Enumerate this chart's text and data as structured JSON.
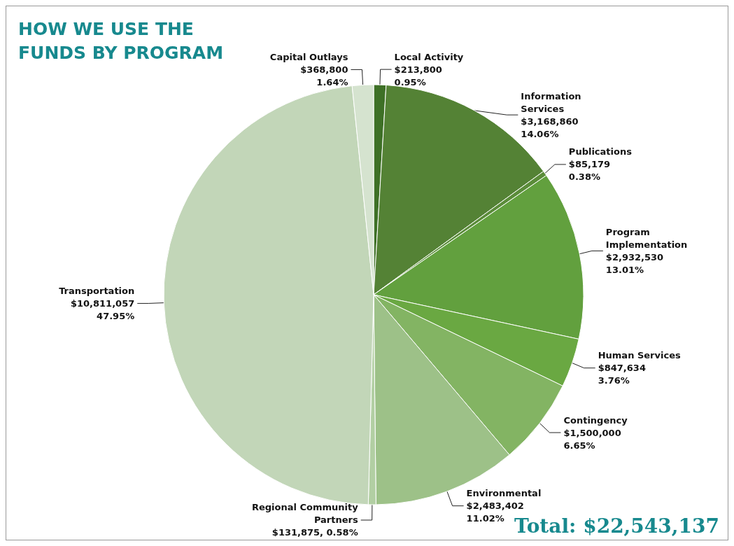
{
  "chart_data": {
    "type": "pie",
    "title": "HOW WE USE THE FUNDS BY PROGRAM",
    "categories": [
      "Local Activity",
      "Information Services",
      "Publications",
      "Program Implementation",
      "Human Services",
      "Contingency",
      "Environmental",
      "Regional Community Partners",
      "Transportation",
      "Capital Outlays"
    ],
    "values": [
      213800,
      3168860,
      85179,
      2932530,
      847634,
      1500000,
      2483402,
      131875,
      10811057,
      368800
    ],
    "value_labels": [
      "$213,800\n0.95%",
      "$3,168,860\n14.06%",
      "$85,179\n0.38%",
      "$2,932,530\n13.01%",
      "$847,634\n3.76%",
      "$1,500,000\n6.65%",
      "$2,483,402\n11.02%",
      "$131,875, 0.58%",
      "$10,811,057\n47.95%",
      "$368,800\n1.64%"
    ],
    "colors": [
      "#3e7026",
      "#548235",
      "#5b8c3a",
      "#62a03e",
      "#6aa842",
      "#83b463",
      "#9dc188",
      "#b2cfa3",
      "#c2d6b8",
      "#d5e3cf"
    ],
    "annotations": [
      "Total: $22,543,137"
    ]
  }
}
